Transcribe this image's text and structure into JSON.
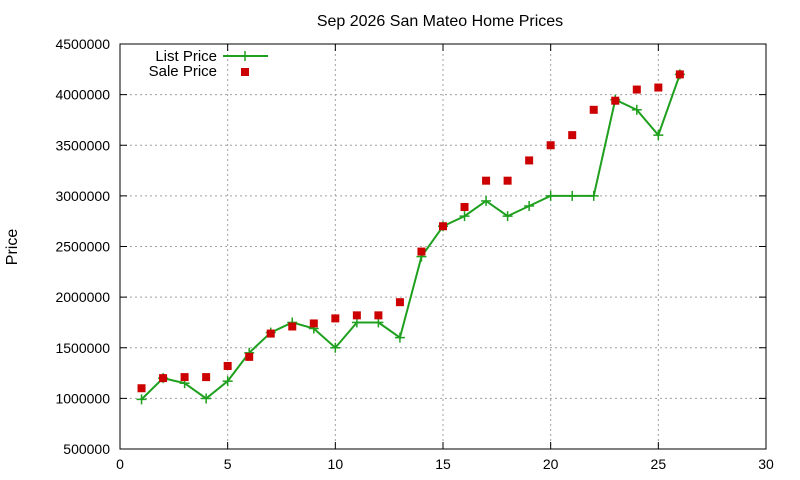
{
  "chart_data": {
    "type": "line",
    "title": "Sep 2026 San Mateo Home Prices",
    "xlabel": "",
    "ylabel": "Price",
    "xlim": [
      0,
      30
    ],
    "ylim": [
      500000,
      4500000
    ],
    "x_ticks": [
      0,
      5,
      10,
      15,
      20,
      25,
      30
    ],
    "y_ticks": [
      500000,
      1000000,
      1500000,
      2000000,
      2500000,
      3000000,
      3500000,
      4000000,
      4500000
    ],
    "grid": true,
    "legend_position": "top-left",
    "series": [
      {
        "name": "List Price",
        "style": "line-cross",
        "color": "#1ea01e",
        "x": [
          1,
          2,
          3,
          4,
          5,
          6,
          7,
          8,
          9,
          10,
          11,
          12,
          13,
          14,
          15,
          16,
          17,
          18,
          19,
          20,
          21,
          22,
          23,
          24,
          25,
          26
        ],
        "values": [
          990000,
          1200000,
          1150000,
          999000,
          1170000,
          1450000,
          1650000,
          1750000,
          1690000,
          1500000,
          1750000,
          1750000,
          1600000,
          2400000,
          2700000,
          2800000,
          2950000,
          2800000,
          2900000,
          3000000,
          3000000,
          3000000,
          3950000,
          3850000,
          3600000,
          4200000
        ]
      },
      {
        "name": "Sale Price",
        "style": "square",
        "color": "#cc0000",
        "x": [
          1,
          2,
          3,
          4,
          5,
          6,
          7,
          8,
          9,
          10,
          11,
          12,
          13,
          14,
          15,
          16,
          17,
          18,
          19,
          20,
          21,
          22,
          23,
          24,
          25,
          26
        ],
        "values": [
          1100000,
          1200000,
          1210000,
          1210000,
          1320000,
          1410000,
          1640000,
          1710000,
          1740000,
          1790000,
          1820000,
          1820000,
          1950000,
          2450000,
          2700000,
          2890000,
          3150000,
          3150000,
          3350000,
          3500000,
          3600000,
          3850000,
          3940000,
          4050000,
          4070000,
          4200000
        ]
      }
    ]
  }
}
